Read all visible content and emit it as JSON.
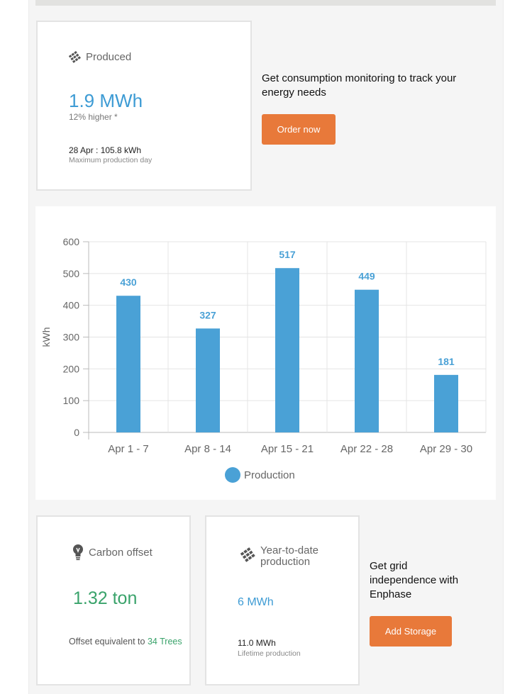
{
  "produced": {
    "title": "Produced",
    "value": "1.9 MWh",
    "comparison": "12% higher *",
    "max_day": "28 Apr : 105.8 kWh",
    "max_day_caption": "Maximum production day"
  },
  "consumption_promo": {
    "text": "Get consumption monitoring to track your energy needs",
    "button_label": "Order now"
  },
  "chart_data": {
    "type": "bar",
    "categories": [
      "Apr 1 - 7",
      "Apr 8 - 14",
      "Apr 15 - 21",
      "Apr 22 - 28",
      "Apr 29 - 30"
    ],
    "series": [
      {
        "name": "Production",
        "values": [
          430,
          327,
          517,
          449,
          181
        ]
      }
    ],
    "ylabel": "kWh",
    "ylim": [
      0,
      600
    ],
    "yticks": [
      0,
      100,
      200,
      300,
      400,
      500,
      600
    ],
    "grid": true,
    "legend": "bottom-center",
    "color": "#4aa1d6"
  },
  "carbon": {
    "title": "Carbon offset",
    "value": "1.32 ton",
    "offset_prefix": "Offset equivalent to ",
    "offset_value": "34 Trees"
  },
  "ytd": {
    "title": "Year-to-date production",
    "value": "6 MWh",
    "lifetime": "11.0 MWh",
    "lifetime_caption": "Lifetime production"
  },
  "storage_promo": {
    "text": "Get grid independence with Enphase",
    "button_label": "Add Storage"
  },
  "colors": {
    "accent_orange": "#e8793a",
    "value_blue": "#3d9bd4",
    "value_green": "#3aa36b"
  },
  "icons": {
    "produced": "solar-panel-icon",
    "carbon": "lightbulb-icon",
    "ytd": "solar-panel-icon"
  }
}
